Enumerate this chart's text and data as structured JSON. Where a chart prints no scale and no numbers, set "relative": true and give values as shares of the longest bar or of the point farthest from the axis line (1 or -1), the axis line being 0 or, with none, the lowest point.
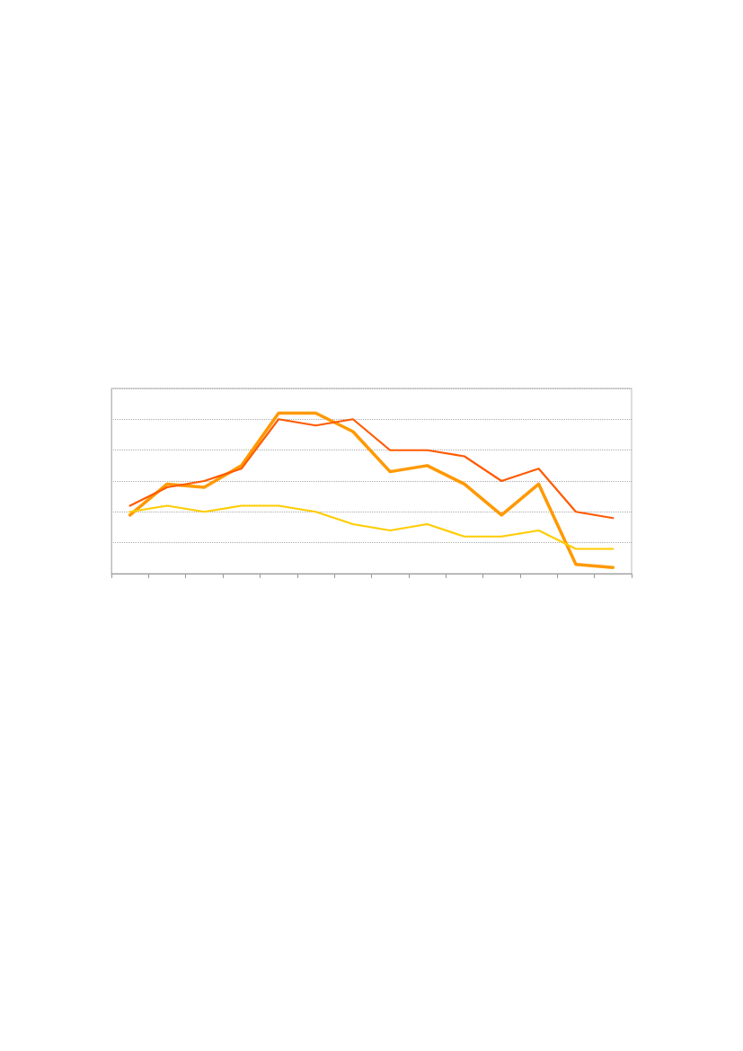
{
  "chart_data": {
    "type": "line",
    "relative": true,
    "categories": [
      null,
      null,
      null,
      null,
      null,
      null,
      null,
      null,
      null,
      null,
      null,
      null,
      null,
      null
    ],
    "grid": "y",
    "marker": "none",
    "series": [
      {
        "color": "#ff9900",
        "values": [
          0.365,
          0.558,
          0.538,
          0.673,
          1,
          1,
          0.885,
          0.635,
          0.673,
          0.558,
          0.365,
          0.558,
          0.058,
          0.038
        ]
      },
      {
        "color": "#ffcc00",
        "values": [
          0.385,
          0.423,
          0.385,
          0.423,
          0.423,
          0.385,
          0.308,
          0.269,
          0.308,
          0.231,
          0.231,
          0.269,
          0.154,
          0.154
        ]
      },
      {
        "color": "#ff5a00",
        "values": [
          0.423,
          0.538,
          0.577,
          0.654,
          0.962,
          0.923,
          0.962,
          0.769,
          0.769,
          0.731,
          0.577,
          0.654,
          0.385,
          0.346
        ]
      }
    ]
  }
}
